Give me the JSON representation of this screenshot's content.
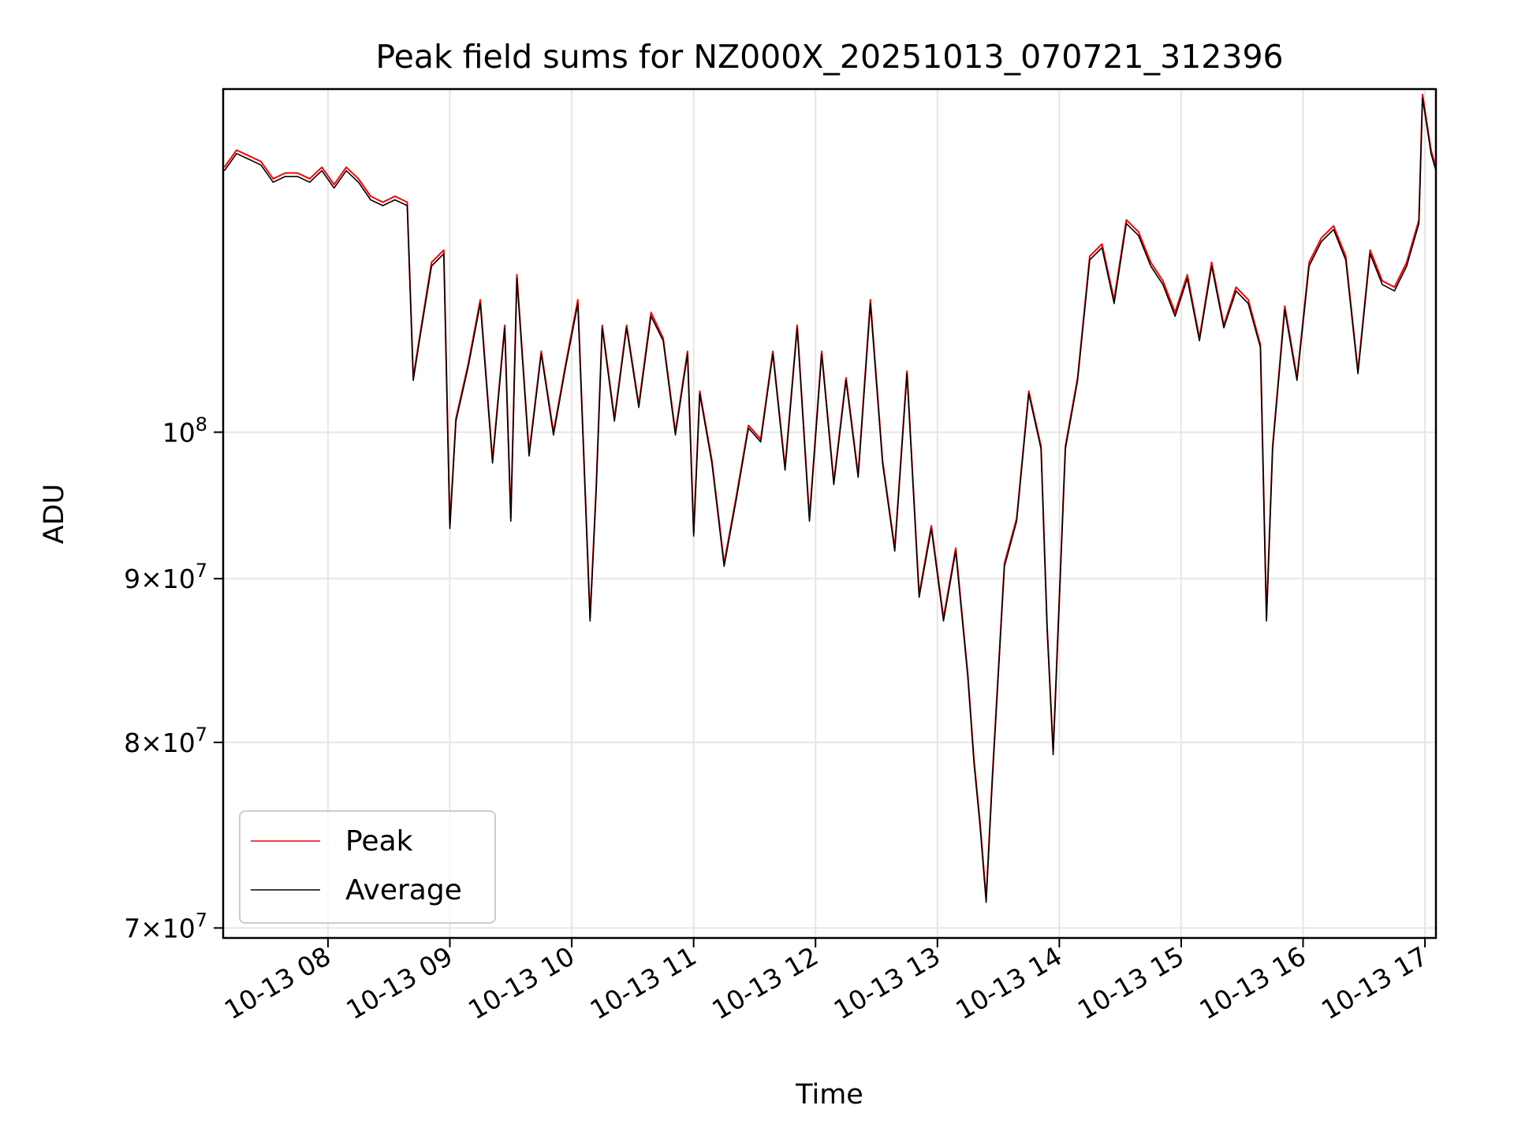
{
  "chart_data": {
    "type": "line",
    "title": "Peak field sums for NZ000X_20251013_070721_312396",
    "xlabel": "Time",
    "ylabel": "ADU",
    "y_scale": "log",
    "grid": true,
    "legend_position": "lower-left",
    "x_range_hours": [
      7.14,
      17.09
    ],
    "ylim": [
      69500000,
      128000000
    ],
    "x_ticks": [
      {
        "value": 8,
        "label": "10-13 08"
      },
      {
        "value": 9,
        "label": "10-13 09"
      },
      {
        "value": 10,
        "label": "10-13 10"
      },
      {
        "value": 11,
        "label": "10-13 11"
      },
      {
        "value": 12,
        "label": "10-13 12"
      },
      {
        "value": 13,
        "label": "10-13 13"
      },
      {
        "value": 14,
        "label": "10-13 14"
      },
      {
        "value": 15,
        "label": "10-13 15"
      },
      {
        "value": 16,
        "label": "10-13 16"
      },
      {
        "value": 17,
        "label": "10-13 17"
      }
    ],
    "y_ticks": [
      {
        "value": 70000000,
        "mantissa": "7",
        "exponent": "7",
        "label": "7×10^7"
      },
      {
        "value": 80000000,
        "mantissa": "8",
        "exponent": "7",
        "label": "8×10^7"
      },
      {
        "value": 90000000,
        "mantissa": "9",
        "exponent": "7",
        "label": "9×10^7"
      },
      {
        "value": 100000000,
        "mantissa": "",
        "exponent": "8",
        "label": "10^8"
      }
    ],
    "series": [
      {
        "name": "Peak",
        "color": "#ff0000",
        "x": [
          7.15,
          7.25,
          7.35,
          7.45,
          7.55,
          7.65,
          7.75,
          7.85,
          7.95,
          8.05,
          8.15,
          8.25,
          8.35,
          8.45,
          8.55,
          8.65,
          8.7,
          8.75,
          8.85,
          8.95,
          9.0,
          9.05,
          9.15,
          9.25,
          9.35,
          9.45,
          9.5,
          9.55,
          9.65,
          9.75,
          9.85,
          9.95,
          10.05,
          10.15,
          10.2,
          10.25,
          10.35,
          10.45,
          10.55,
          10.65,
          10.75,
          10.85,
          10.95,
          11.0,
          11.05,
          11.15,
          11.25,
          11.35,
          11.45,
          11.55,
          11.65,
          11.75,
          11.85,
          11.95,
          12.05,
          12.15,
          12.25,
          12.35,
          12.45,
          12.55,
          12.65,
          12.75,
          12.85,
          12.95,
          13.05,
          13.15,
          13.25,
          13.3,
          13.35,
          13.4,
          13.45,
          13.55,
          13.65,
          13.75,
          13.85,
          13.9,
          13.95,
          14.05,
          14.15,
          14.25,
          14.35,
          14.45,
          14.55,
          14.65,
          14.75,
          14.85,
          14.95,
          15.05,
          15.15,
          15.25,
          15.35,
          15.45,
          15.55,
          15.65,
          15.7,
          15.75,
          15.85,
          15.95,
          16.05,
          16.15,
          16.25,
          16.35,
          16.45,
          16.55,
          16.65,
          16.75,
          16.85,
          16.95,
          16.98,
          17.05,
          17.09
        ],
        "y": [
          121000000,
          122500000,
          122000000,
          121500000,
          120000000,
          120500000,
          120500000,
          120000000,
          121000000,
          119500000,
          121000000,
          120000000,
          118500000,
          118000000,
          118500000,
          118000000,
          104000000,
          107000000,
          113000000,
          114000000,
          93500000,
          101000000,
          105000000,
          110000000,
          98000000,
          108000000,
          94000000,
          112000000,
          98500000,
          106000000,
          100000000,
          105000000,
          110000000,
          87500000,
          96000000,
          108000000,
          101000000,
          108000000,
          102000000,
          109000000,
          107000000,
          100000000,
          106000000,
          93000000,
          103000000,
          98000000,
          91000000,
          95500000,
          100500000,
          99500000,
          106000000,
          97500000,
          108000000,
          94000000,
          106000000,
          96500000,
          104000000,
          97000000,
          110000000,
          98000000,
          92000000,
          104500000,
          89000000,
          93500000,
          87500000,
          92000000,
          84000000,
          79000000,
          75500000,
          71500000,
          78000000,
          91000000,
          94000000,
          103000000,
          99000000,
          87000000,
          79500000,
          99000000,
          104000000,
          113500000,
          114500000,
          110000000,
          116500000,
          115500000,
          113000000,
          111500000,
          109000000,
          112000000,
          107000000,
          113000000,
          108000000,
          111000000,
          110000000,
          106500000,
          87500000,
          99000000,
          109500000,
          104000000,
          113000000,
          115000000,
          116000000,
          113500000,
          104500000,
          114000000,
          111500000,
          111000000,
          113000000,
          116500000,
          127500000,
          122500000,
          121000000
        ]
      },
      {
        "name": "Average",
        "color": "#000000",
        "x": [
          7.15,
          7.25,
          7.35,
          7.45,
          7.55,
          7.65,
          7.75,
          7.85,
          7.95,
          8.05,
          8.15,
          8.25,
          8.35,
          8.45,
          8.55,
          8.65,
          8.7,
          8.75,
          8.85,
          8.95,
          9.0,
          9.05,
          9.15,
          9.25,
          9.35,
          9.45,
          9.5,
          9.55,
          9.65,
          9.75,
          9.85,
          9.95,
          10.05,
          10.15,
          10.2,
          10.25,
          10.35,
          10.45,
          10.55,
          10.65,
          10.75,
          10.85,
          10.95,
          11.0,
          11.05,
          11.15,
          11.25,
          11.35,
          11.45,
          11.55,
          11.65,
          11.75,
          11.85,
          11.95,
          12.05,
          12.15,
          12.25,
          12.35,
          12.45,
          12.55,
          12.65,
          12.75,
          12.85,
          12.95,
          13.05,
          13.15,
          13.25,
          13.3,
          13.35,
          13.4,
          13.45,
          13.55,
          13.65,
          13.75,
          13.85,
          13.9,
          13.95,
          14.05,
          14.15,
          14.25,
          14.35,
          14.45,
          14.55,
          14.65,
          14.75,
          14.85,
          14.95,
          15.05,
          15.15,
          15.25,
          15.35,
          15.45,
          15.55,
          15.65,
          15.7,
          15.75,
          15.85,
          15.95,
          16.05,
          16.15,
          16.25,
          16.35,
          16.45,
          16.55,
          16.65,
          16.75,
          16.85,
          16.95,
          16.98,
          17.05,
          17.09
        ],
        "y": [
          120700000,
          122200000,
          121700000,
          121200000,
          119700000,
          120200000,
          120200000,
          119700000,
          120700000,
          119200000,
          120700000,
          119700000,
          118200000,
          117700000,
          118200000,
          117700000,
          103800000,
          106800000,
          112700000,
          113700000,
          93300000,
          100800000,
          104800000,
          109700000,
          97800000,
          107800000,
          93800000,
          111700000,
          98300000,
          105800000,
          99800000,
          104800000,
          109700000,
          87300000,
          95800000,
          107800000,
          100800000,
          107800000,
          101800000,
          108700000,
          106800000,
          99800000,
          105800000,
          92800000,
          102800000,
          97800000,
          90800000,
          95300000,
          100300000,
          99300000,
          105800000,
          97300000,
          107800000,
          93800000,
          105800000,
          96300000,
          103800000,
          96800000,
          109700000,
          97800000,
          91800000,
          104300000,
          88800000,
          93300000,
          87300000,
          91800000,
          83800000,
          78800000,
          75300000,
          71300000,
          77800000,
          90800000,
          93800000,
          102800000,
          98800000,
          86800000,
          79300000,
          98800000,
          103800000,
          113200000,
          114200000,
          109700000,
          116200000,
          115200000,
          112700000,
          111200000,
          108700000,
          111700000,
          106800000,
          112700000,
          107800000,
          110700000,
          109700000,
          106300000,
          87300000,
          98800000,
          109200000,
          103800000,
          112700000,
          114700000,
          115700000,
          113200000,
          104300000,
          113700000,
          111200000,
          110700000,
          112700000,
          116200000,
          127200000,
          122200000,
          120700000
        ]
      }
    ]
  }
}
